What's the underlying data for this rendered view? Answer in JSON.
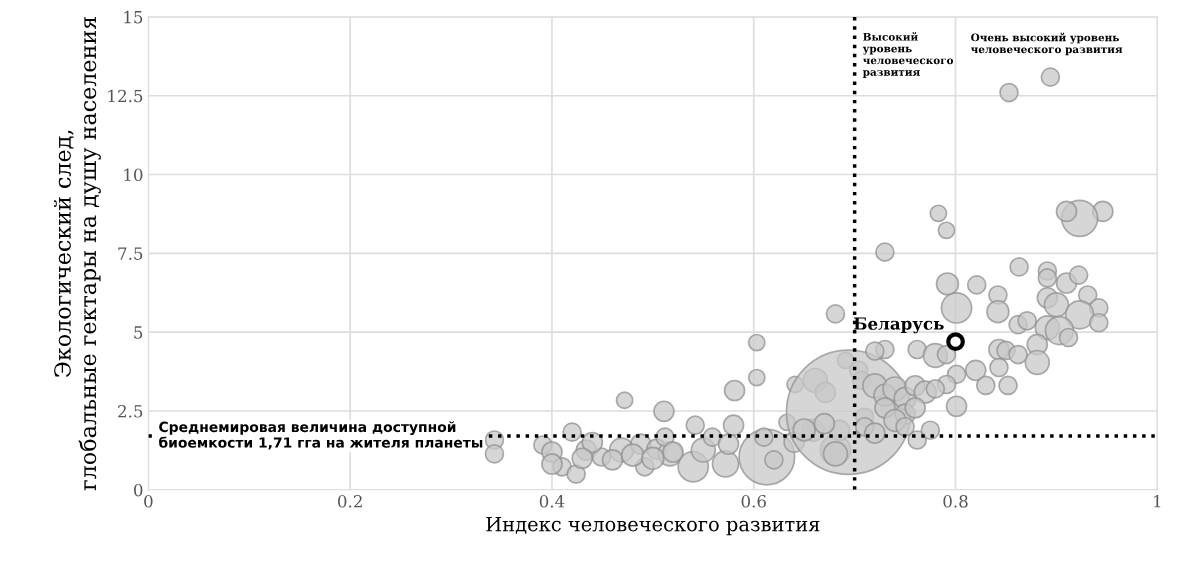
{
  "chart_data": {
    "type": "bubble",
    "xlabel": "Индекс человеческого развития",
    "ylabel": "Экологический след,\nглобальные гектары на душу населения",
    "xlim": [
      0,
      1
    ],
    "ylim": [
      0,
      15
    ],
    "xticks": [
      0,
      0.2,
      0.4,
      0.6,
      0.8,
      1
    ],
    "yticks": [
      0,
      2.5,
      5,
      7.5,
      10,
      12.5,
      15
    ],
    "grid": true,
    "legend": false,
    "ref_lines": [
      {
        "axis": "y",
        "value": 1.71,
        "label": "Среднемировая величина доступной\nбиоемкости 1,71 гга на жителя планеты",
        "color": "#000000",
        "line_style": "dotted"
      },
      {
        "axis": "x",
        "value": 0.7,
        "label": "Высокий\nуровень\nчеловеческого\nразвития",
        "color": "#000000",
        "line_style": "dotted"
      }
    ],
    "annotations": [
      "Очень высокий уровень\nчеловеческого развития"
    ],
    "series": [
      {
        "color": "#c8c8c8",
        "x": [
          0.343,
          0.343,
          0.391,
          0.4,
          0.41,
          0.42,
          0.424,
          0.4,
          0.434,
          0.449,
          0.469,
          0.46,
          0.488,
          0.492,
          0.504,
          0.517,
          0.512,
          0.54,
          0.55,
          0.559,
          0.572,
          0.575,
          0.472,
          0.511,
          0.542,
          0.581,
          0.603,
          0.603,
          0.58,
          0.613,
          0.62,
          0.61,
          0.633,
          0.64,
          0.641,
          0.661,
          0.671,
          0.659,
          0.681,
          0.685,
          0.691,
          0.704,
          0.707,
          0.71,
          0.694,
          0.681,
          0.783,
          0.791,
          0.73,
          0.681,
          0.792,
          0.821,
          0.801,
          0.842,
          0.842,
          0.863,
          0.891,
          0.891,
          0.91,
          0.922,
          0.891,
          0.9,
          0.931,
          0.942,
          0.923,
          0.942,
          0.862,
          0.871,
          0.891,
          0.903,
          0.912,
          0.881,
          0.881,
          0.843,
          0.85,
          0.862,
          0.82,
          0.843,
          0.83,
          0.852,
          0.801,
          0.801,
          0.762,
          0.78,
          0.791,
          0.73,
          0.791,
          0.762,
          0.775,
          0.946,
          0.923,
          0.91,
          0.894,
          0.853,
          0.72,
          0.73,
          0.74,
          0.75,
          0.76,
          0.77,
          0.73,
          0.75,
          0.71,
          0.72,
          0.74,
          0.76,
          0.78,
          0.72,
          0.65,
          0.67,
          0.75,
          0.48,
          0.5,
          0.52,
          0.44,
          0.43
        ],
        "values": [
          1.58,
          1.14,
          1.42,
          1.2,
          0.73,
          1.83,
          0.5,
          0.82,
          1.26,
          1.04,
          1.26,
          0.95,
          1.45,
          0.73,
          1.29,
          1.14,
          1.67,
          0.73,
          1.26,
          1.67,
          0.82,
          1.45,
          2.84,
          2.49,
          2.05,
          3.15,
          4.67,
          3.56,
          2.05,
          1.04,
          0.95,
          1.67,
          2.14,
          1.51,
          3.34,
          3.47,
          3.09,
          1.89,
          1.26,
          1.89,
          4.1,
          3.79,
          3.47,
          2.3,
          2.46,
          5.58,
          8.77,
          8.23,
          7.54,
          1.14,
          6.53,
          6.5,
          5.77,
          6.18,
          5.65,
          7.07,
          6.94,
          6.72,
          6.56,
          6.81,
          6.09,
          5.87,
          6.18,
          5.77,
          5.55,
          5.3,
          5.24,
          5.36,
          5.14,
          5.05,
          4.83,
          4.61,
          4.04,
          4.45,
          4.42,
          4.29,
          3.79,
          3.88,
          3.31,
          3.31,
          3.66,
          2.65,
          4.45,
          4.26,
          4.29,
          4.45,
          3.34,
          1.58,
          1.89,
          8.83,
          8.61,
          8.83,
          13.09,
          12.6,
          3.3,
          3.0,
          3.2,
          2.9,
          3.3,
          3.1,
          2.6,
          2.4,
          2.0,
          1.8,
          2.2,
          2.6,
          3.2,
          4.4,
          1.9,
          2.1,
          2.0,
          1.1,
          1.0,
          1.2,
          1.5,
          1.0
        ],
        "sizes": [
          0.021,
          0.021,
          0.021,
          0.026,
          0.021,
          0.021,
          0.021,
          0.026,
          0.026,
          0.021,
          0.037,
          0.026,
          0.026,
          0.021,
          0.026,
          0.037,
          0.021,
          0.059,
          0.037,
          0.021,
          0.044,
          0.026,
          0.017,
          0.026,
          0.021,
          0.026,
          0.017,
          0.017,
          0.026,
          0.2,
          0.021,
          0.021,
          0.017,
          0.026,
          0.017,
          0.037,
          0.026,
          0.031,
          0.059,
          0.026,
          0.017,
          0.021,
          0.021,
          0.021,
          1,
          0.021,
          0.017,
          0.017,
          0.021,
          0.037,
          0.031,
          0.021,
          0.059,
          0.021,
          0.031,
          0.021,
          0.021,
          0.021,
          0.026,
          0.021,
          0.026,
          0.037,
          0.021,
          0.021,
          0.051,
          0.021,
          0.021,
          0.021,
          0.037,
          0.051,
          0.021,
          0.026,
          0.037,
          0.026,
          0.021,
          0.021,
          0.026,
          0.021,
          0.021,
          0.021,
          0.021,
          0.026,
          0.021,
          0.037,
          0.021,
          0.021,
          0.021,
          0.021,
          0.021,
          0.026,
          0.084,
          0.026,
          0.021,
          0.021,
          0.037,
          0.031,
          0.037,
          0.031,
          0.026,
          0.031,
          0.026,
          0.026,
          0.021,
          0.026,
          0.031,
          0.026,
          0.021,
          0.021,
          0.031,
          0.026,
          0.021,
          0.031,
          0.031,
          0.026,
          0.026,
          0.026
        ]
      },
      {
        "type": "scatter",
        "name": "Беларусь",
        "color": "#000000",
        "marker": "circle",
        "x": [
          0.8
        ],
        "values": [
          4.7
        ]
      }
    ]
  }
}
